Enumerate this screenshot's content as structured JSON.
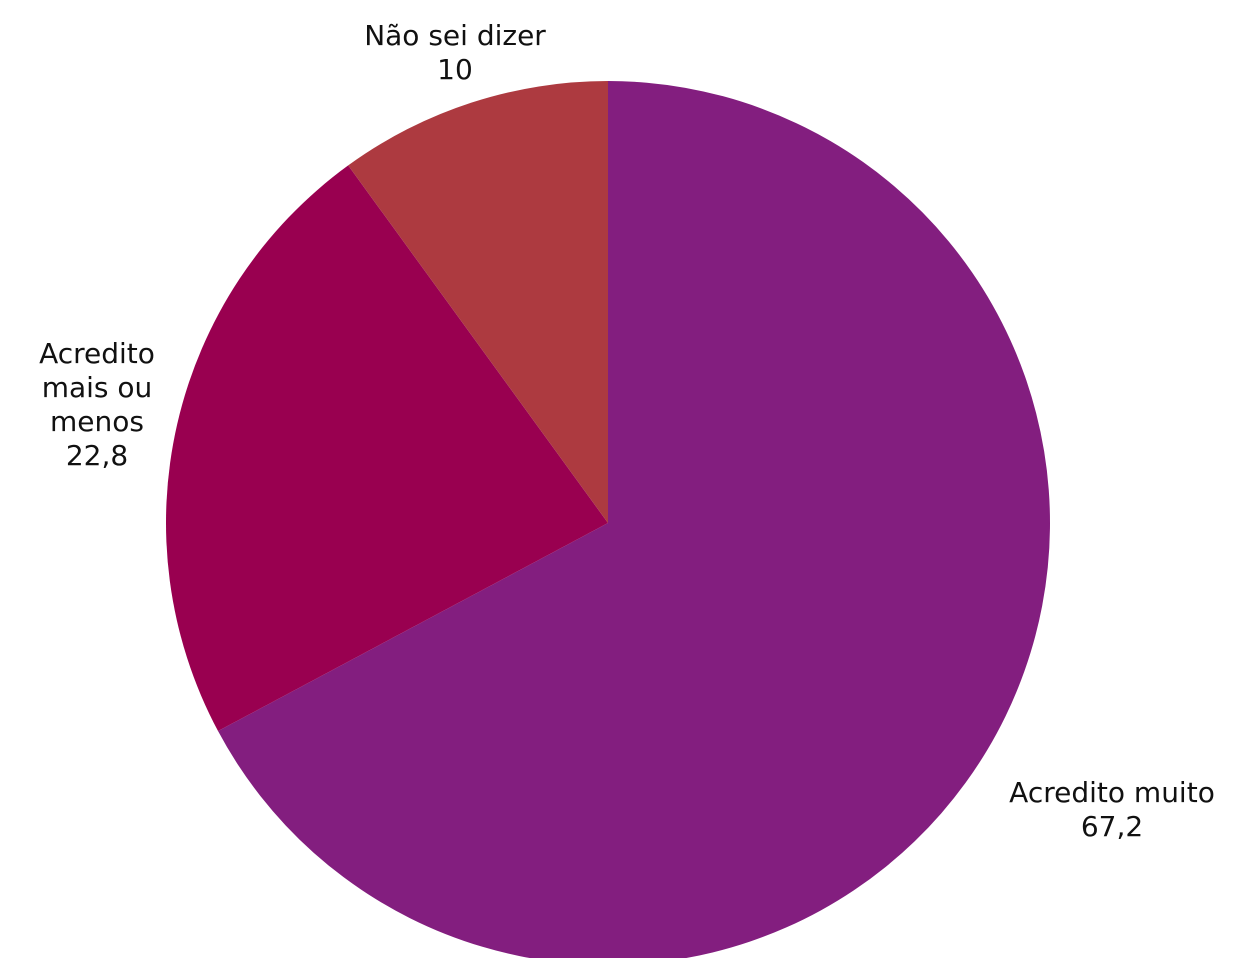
{
  "chart_data": {
    "type": "pie",
    "categories": [
      "Acredito muito",
      "Acredito mais ou menos",
      "Não sei dizer"
    ],
    "values": [
      67.2,
      22.8,
      10
    ],
    "value_labels": [
      "67,2",
      "22,8",
      "10"
    ],
    "colors": [
      "#831e7f",
      "#990050",
      "#ad3a40"
    ]
  }
}
